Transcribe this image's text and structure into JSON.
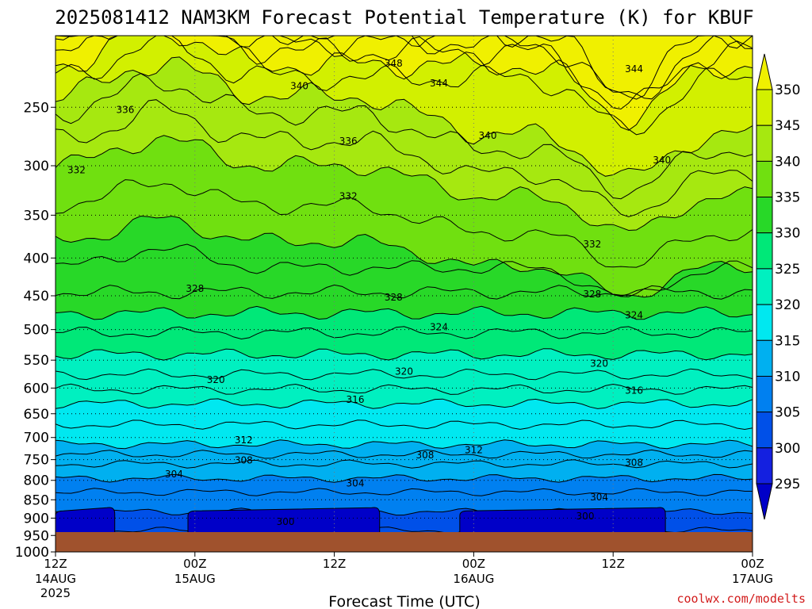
{
  "chart_data": {
    "type": "contour",
    "title": "2025081412 NAM3KM Forecast Potential Temperature (K) for KBUF",
    "xlabel": "Forecast Time (UTC)",
    "credit": "coolwx.com/modelts",
    "x_ticks": [
      {
        "top": "12Z",
        "mid": "14AUG",
        "bottom": "2025"
      },
      {
        "top": "00Z",
        "mid": "15AUG",
        "bottom": ""
      },
      {
        "top": "12Z",
        "mid": "",
        "bottom": ""
      },
      {
        "top": "00Z",
        "mid": "16AUG",
        "bottom": ""
      },
      {
        "top": "12Z",
        "mid": "",
        "bottom": ""
      },
      {
        "top": "00Z",
        "mid": "17AUG",
        "bottom": ""
      }
    ],
    "x_range_hours": [
      0,
      60
    ],
    "y_ticks": [
      250,
      300,
      350,
      400,
      450,
      500,
      550,
      600,
      650,
      700,
      750,
      800,
      850,
      900,
      950,
      1000
    ],
    "y_range_hPa": [
      200,
      1000
    ],
    "y_scale": "log",
    "colorbar_levels": [
      350,
      345,
      340,
      335,
      330,
      325,
      320,
      315,
      310,
      305,
      300,
      295
    ],
    "colorbar_colors": [
      "#f0f000",
      "#d2f000",
      "#a6e810",
      "#70e010",
      "#28d828",
      "#00e878",
      "#00f0c0",
      "#00e8f0",
      "#00b0f0",
      "#0080f0",
      "#0050e8",
      "#1420e0",
      "#0000c8"
    ],
    "ground_color": "#a0522d",
    "contour_labels": [
      {
        "text": "348",
        "t": 0.485,
        "p": 218
      },
      {
        "text": "344",
        "t": 0.55,
        "p": 232
      },
      {
        "text": "344",
        "t": 0.83,
        "p": 222
      },
      {
        "text": "340",
        "t": 0.35,
        "p": 234
      },
      {
        "text": "340",
        "t": 0.62,
        "p": 273
      },
      {
        "text": "340",
        "t": 0.87,
        "p": 295
      },
      {
        "text": "336",
        "t": 0.1,
        "p": 252
      },
      {
        "text": "336",
        "t": 0.42,
        "p": 278
      },
      {
        "text": "332",
        "t": 0.03,
        "p": 304
      },
      {
        "text": "332",
        "t": 0.42,
        "p": 330
      },
      {
        "text": "332",
        "t": 0.77,
        "p": 383
      },
      {
        "text": "328",
        "t": 0.2,
        "p": 440
      },
      {
        "text": "328",
        "t": 0.485,
        "p": 452
      },
      {
        "text": "328",
        "t": 0.77,
        "p": 448
      },
      {
        "text": "324",
        "t": 0.55,
        "p": 496
      },
      {
        "text": "324",
        "t": 0.83,
        "p": 478
      },
      {
        "text": "320",
        "t": 0.23,
        "p": 585
      },
      {
        "text": "320",
        "t": 0.5,
        "p": 570
      },
      {
        "text": "320",
        "t": 0.78,
        "p": 556
      },
      {
        "text": "316",
        "t": 0.43,
        "p": 622
      },
      {
        "text": "316",
        "t": 0.83,
        "p": 605
      },
      {
        "text": "312",
        "t": 0.27,
        "p": 706
      },
      {
        "text": "312",
        "t": 0.6,
        "p": 728
      },
      {
        "text": "308",
        "t": 0.27,
        "p": 752
      },
      {
        "text": "308",
        "t": 0.53,
        "p": 740
      },
      {
        "text": "308",
        "t": 0.83,
        "p": 757
      },
      {
        "text": "304",
        "t": 0.17,
        "p": 785
      },
      {
        "text": "304",
        "t": 0.43,
        "p": 807
      },
      {
        "text": "304",
        "t": 0.78,
        "p": 843
      },
      {
        "text": "300",
        "t": 0.33,
        "p": 910
      },
      {
        "text": "300",
        "t": 0.76,
        "p": 895
      }
    ]
  }
}
